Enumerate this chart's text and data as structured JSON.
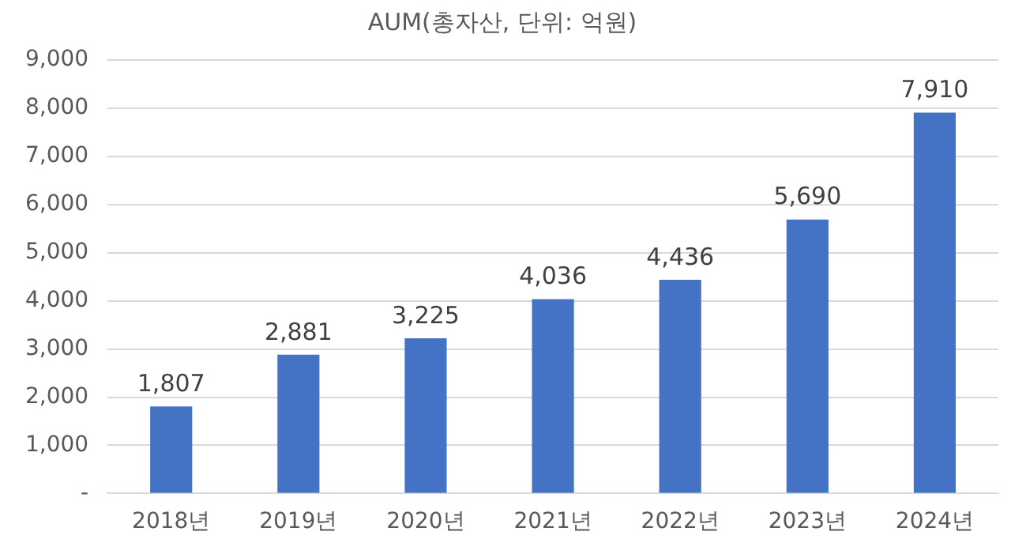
{
  "chart_data": {
    "type": "bar",
    "title": "AUM(총자산, 단위: 억원)",
    "categories": [
      "2018년",
      "2019년",
      "2020년",
      "2021년",
      "2022년",
      "2023년",
      "2024년"
    ],
    "values": [
      1807,
      2881,
      3225,
      4036,
      4436,
      5690,
      7910
    ],
    "value_labels": [
      "1,807",
      "2,881",
      "3,225",
      "4,036",
      "4,436",
      "5,690",
      "7,910"
    ],
    "color": "#4472c4",
    "ylim": [
      0,
      9000
    ],
    "yticks": [
      {
        "value": 0,
        "label": "-"
      },
      {
        "value": 1000,
        "label": "1,000"
      },
      {
        "value": 2000,
        "label": "2,000"
      },
      {
        "value": 3000,
        "label": "3,000"
      },
      {
        "value": 4000,
        "label": "4,000"
      },
      {
        "value": 5000,
        "label": "5,000"
      },
      {
        "value": 6000,
        "label": "6,000"
      },
      {
        "value": 7000,
        "label": "7,000"
      },
      {
        "value": 8000,
        "label": "8,000"
      },
      {
        "value": 9000,
        "label": "9,000"
      }
    ],
    "grid": "y",
    "legend": false
  }
}
